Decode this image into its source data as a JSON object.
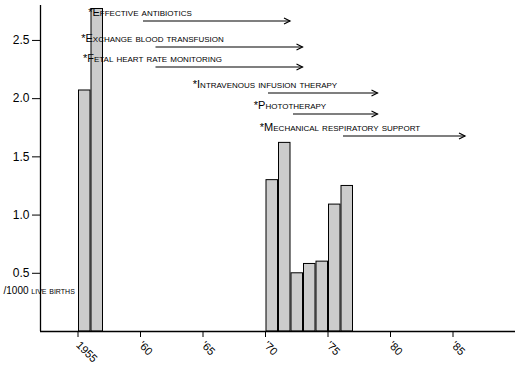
{
  "chart_data": {
    "type": "bar",
    "x": [
      1955,
      1956,
      1970,
      1971,
      1972,
      1973,
      1974,
      1975,
      1976
    ],
    "values": [
      2.07,
      2.77,
      1.3,
      1.62,
      0.5,
      0.58,
      0.6,
      1.09,
      1.25
    ],
    "color": "#cccccc",
    "xlim": [
      1952,
      1990
    ],
    "xticks": [
      {
        "value": 1955,
        "label": "1955"
      },
      {
        "value": 1960,
        "label": "'60"
      },
      {
        "value": 1965,
        "label": "'65"
      },
      {
        "value": 1970,
        "label": "'70"
      },
      {
        "value": 1975,
        "label": "'75"
      },
      {
        "value": 1980,
        "label": "'80"
      },
      {
        "value": 1985,
        "label": "'85"
      }
    ],
    "ylim": [
      0,
      2.8
    ],
    "yticks": [
      0.5,
      {
        "value": 1,
        "label": "1.0"
      },
      1.5,
      {
        "value": 2,
        "label": "2.0"
      },
      2.5
    ],
    "y_label": "/1000 live births",
    "grid": false,
    "annotations": [
      {
        "text": "*Effective antibiotics",
        "x_start": 1960,
        "x_end": 1972
      },
      {
        "text": "*Exchange blood transfusion",
        "x_start": 1961,
        "x_end": 1973
      },
      {
        "text": "*Fetal heart rate monitoring",
        "x_start": 1961,
        "x_end": 1973
      },
      {
        "text": "*Intravenous infusion therapy",
        "x_start": 1970,
        "x_end": 1979
      },
      {
        "text": "*Phototherapy",
        "x_start": 1972,
        "x_end": 1979
      },
      {
        "text": "*Mechanical respiratory support",
        "x_start": 1976,
        "x_end": 1986
      }
    ]
  }
}
